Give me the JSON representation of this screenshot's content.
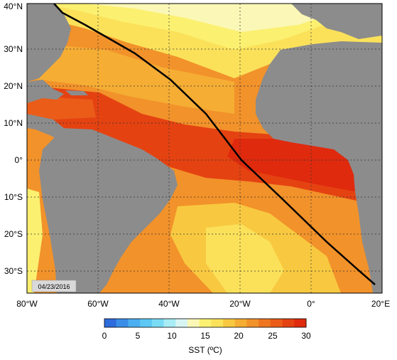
{
  "map": {
    "date_stamp": "04/23/2016",
    "lon_ticks": [
      "80°W",
      "60°W",
      "40°W",
      "20°W",
      "0°",
      "20°E"
    ],
    "lat_ticks": [
      "40°N",
      "30°N",
      "20°N",
      "10°N",
      "0°",
      "10°S",
      "20°S",
      "30°S"
    ],
    "colors": {
      "land": "#8c8c8c",
      "track": "#000000",
      "grid": "#333333"
    }
  },
  "colorbar": {
    "title": "SST (ºC)",
    "ticks": [
      "0",
      "5",
      "10",
      "15",
      "20",
      "25",
      "30"
    ],
    "colors": [
      "#2e6bdc",
      "#3a8ee8",
      "#4aaef0",
      "#5cc8f3",
      "#79dcf4",
      "#a8ecf6",
      "#d8f5f4",
      "#fbf7b6",
      "#fbf070",
      "#fbe15a",
      "#f8c940",
      "#f5ad34",
      "#f2922a",
      "#ee7620",
      "#ea5c18",
      "#e54212",
      "#df2a0e"
    ]
  }
}
